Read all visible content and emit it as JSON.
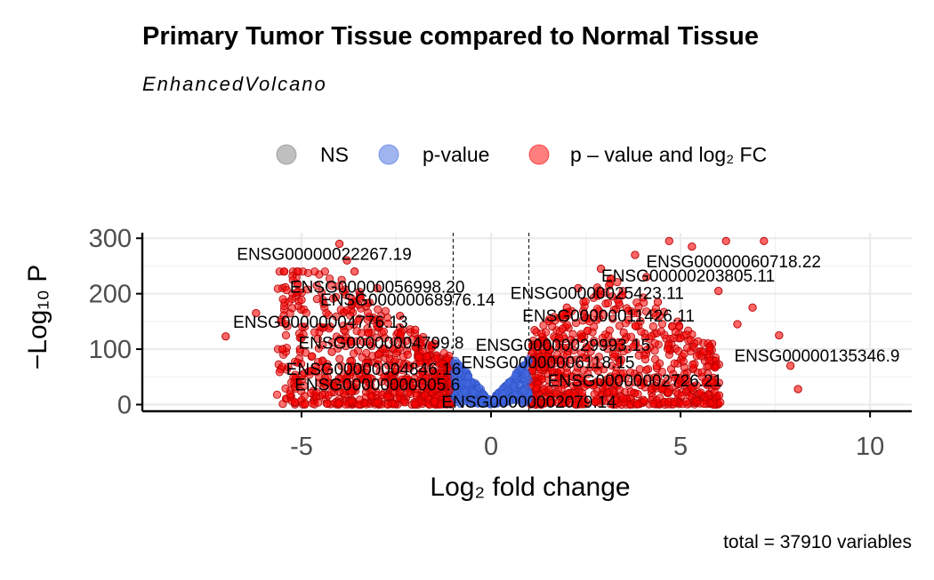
{
  "chart_data": {
    "type": "scatter",
    "title": "Primary Tumor Tissue compared to Normal Tissue",
    "subtitle": "EnhancedVolcano",
    "caption": "total = 37910 variables",
    "xlabel": "Log₂ fold change",
    "ylabel": "−Log₁₀ P",
    "xlim": [
      -9.2,
      11.1
    ],
    "ylim": [
      -12,
      310
    ],
    "x_ticks": [
      -5,
      0,
      5,
      10
    ],
    "x_tick_labels": [
      "-5",
      "0",
      "5",
      "10"
    ],
    "y_ticks": [
      0,
      100,
      200,
      300
    ],
    "y_tick_labels": [
      "0",
      "100",
      "200",
      "300"
    ],
    "grid": true,
    "fc_cutoff_lines": [
      -1,
      1
    ],
    "legend": {
      "position": "top",
      "entries": [
        {
          "label": "NS",
          "color": "#808080"
        },
        {
          "label": "p-value",
          "color": "#4169e1"
        },
        {
          "label": "p – value and log₂ FC",
          "color": "#ff0000"
        }
      ]
    },
    "colors": {
      "ns": "#808080",
      "pvalue": "#4169e1",
      "both": "#ff0000"
    },
    "series": [
      {
        "name": "p – value and log₂ FC",
        "points": [
          [
            -7.0,
            123
          ],
          [
            -6.2,
            165
          ],
          [
            -5.5,
            100
          ],
          [
            -5.0,
            120
          ],
          [
            -4.8,
            60
          ],
          [
            -4.5,
            140
          ],
          [
            -4.2,
            95
          ],
          [
            -4.0,
            290
          ],
          [
            -3.8,
            260
          ],
          [
            -3.6,
            240
          ],
          [
            -3.5,
            180
          ],
          [
            -3.3,
            75
          ],
          [
            -3.0,
            210
          ],
          [
            -2.8,
            120
          ],
          [
            -2.6,
            45
          ],
          [
            -2.4,
            160
          ],
          [
            -2.2,
            90
          ],
          [
            -2.0,
            135
          ],
          [
            -1.8,
            60
          ],
          [
            -1.5,
            110
          ],
          [
            -1.3,
            40
          ],
          [
            -1.1,
            25
          ],
          [
            1.2,
            30
          ],
          [
            1.5,
            80
          ],
          [
            1.8,
            120
          ],
          [
            2.0,
            175
          ],
          [
            2.3,
            210
          ],
          [
            2.6,
            150
          ],
          [
            2.9,
            245
          ],
          [
            3.2,
            195
          ],
          [
            3.5,
            130
          ],
          [
            3.8,
            270
          ],
          [
            4.1,
            230
          ],
          [
            4.4,
            185
          ],
          [
            4.7,
            295
          ],
          [
            5.0,
            120
          ],
          [
            5.3,
            285
          ],
          [
            5.6,
            95
          ],
          [
            6.0,
            205
          ],
          [
            6.2,
            295
          ],
          [
            6.5,
            145
          ],
          [
            6.9,
            175
          ],
          [
            7.2,
            295
          ],
          [
            7.6,
            125
          ],
          [
            7.9,
            70
          ],
          [
            8.1,
            28
          ]
        ]
      }
    ],
    "labels": [
      {
        "text": "ENSG00000022267.19",
        "x": -4.4,
        "y": 272
      },
      {
        "text": "ENSG00000056998.20",
        "x": -3.0,
        "y": 213
      },
      {
        "text": "ENSG00000068976.14",
        "x": -2.2,
        "y": 190
      },
      {
        "text": "ENSG00000004776.13",
        "x": -4.5,
        "y": 150
      },
      {
        "text": "ENSG00000004799.8",
        "x": -2.9,
        "y": 112
      },
      {
        "text": "ENSG00000004846.16",
        "x": -3.1,
        "y": 65
      },
      {
        "text": "ENSG00000000005.6",
        "x": -3.0,
        "y": 37
      },
      {
        "text": "ENSG00000002079.14",
        "x": 1.0,
        "y": 6
      },
      {
        "text": "ENSG00000060718.22",
        "x": 6.4,
        "y": 259
      },
      {
        "text": "ENSG00000203805.11",
        "x": 5.2,
        "y": 233
      },
      {
        "text": "ENSG00000025423.11",
        "x": 2.8,
        "y": 202
      },
      {
        "text": "ENSG00000011426.11",
        "x": 3.1,
        "y": 161
      },
      {
        "text": "ENSG00000029993.15",
        "x": 1.9,
        "y": 108
      },
      {
        "text": "ENSG00000006118.15",
        "x": 1.5,
        "y": 77
      },
      {
        "text": "ENSG00000002726.21",
        "x": 3.8,
        "y": 44
      },
      {
        "text": "ENSG00000135346.9",
        "x": 8.6,
        "y": 89
      }
    ]
  }
}
